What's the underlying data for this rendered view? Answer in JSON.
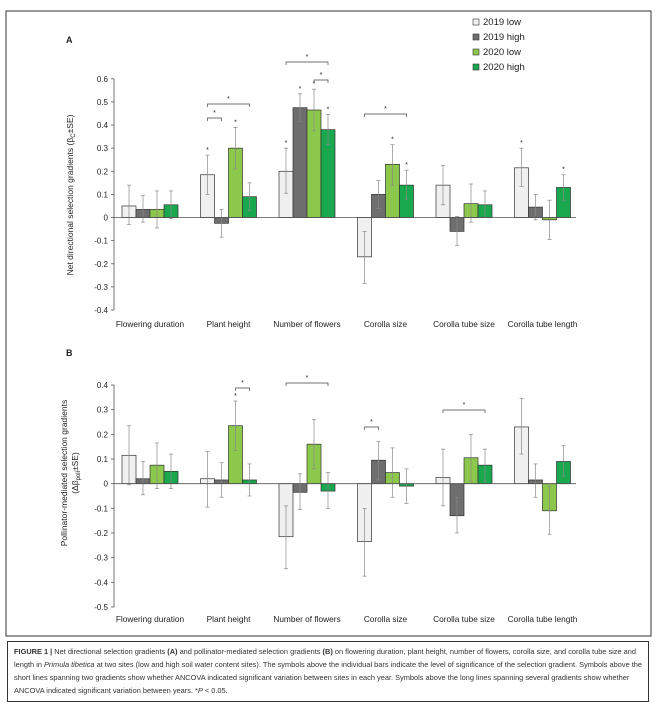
{
  "chart_data": [
    {
      "panel": "A",
      "type": "bar",
      "ylabel": {
        "pre": "Net directional selection gradients (β",
        "sub": "C",
        "post": "±SE)"
      },
      "ylim": [
        -0.4,
        0.6
      ],
      "yticks": [
        "0.6",
        "0.5",
        "0.4",
        "0.3",
        "0.2",
        "0.1",
        "0",
        "-0.1",
        "-0.2",
        "-0.3",
        "-0.4"
      ],
      "categories": [
        "Flowering duration",
        "Plant height",
        "Number of flowers",
        "Corolla size",
        "Corolla tube size",
        "Corolla tube length"
      ],
      "series": [
        {
          "name": "2019 low",
          "color": "#f0f0f0",
          "values": [
            0.05,
            0.185,
            0.2,
            -0.17,
            0.14,
            0.215
          ],
          "err": [
            [
              -0.03,
              0.14
            ],
            [
              0.1,
              0.27
            ],
            [
              0.105,
              0.3
            ],
            [
              -0.285,
              -0.06
            ],
            [
              0.055,
              0.225
            ],
            [
              0.135,
              0.3
            ]
          ],
          "sig": [
            false,
            true,
            true,
            false,
            false,
            true
          ]
        },
        {
          "name": "2019 high",
          "color": "#6e6e6e",
          "values": [
            0.035,
            -0.025,
            0.475,
            0.1,
            -0.06,
            0.045
          ],
          "err": [
            [
              -0.02,
              0.095
            ],
            [
              -0.085,
              0.035
            ],
            [
              0.415,
              0.535
            ],
            [
              0.04,
              0.16
            ],
            [
              -0.12,
              0.005
            ],
            [
              -0.01,
              0.1
            ]
          ],
          "sig": [
            false,
            false,
            true,
            false,
            false,
            false
          ]
        },
        {
          "name": "2020 low",
          "color": "#8cc84b",
          "values": [
            0.035,
            0.3,
            0.465,
            0.23,
            0.06,
            -0.01
          ],
          "err": [
            [
              -0.045,
              0.115
            ],
            [
              0.21,
              0.39
            ],
            [
              0.375,
              0.555
            ],
            [
              0.14,
              0.315
            ],
            [
              -0.02,
              0.145
            ],
            [
              -0.095,
              0.075
            ]
          ],
          "sig": [
            false,
            true,
            true,
            true,
            false,
            false
          ]
        },
        {
          "name": "2020 high",
          "color": "#1aa84f",
          "values": [
            0.055,
            0.09,
            0.38,
            0.14,
            0.055,
            0.13
          ],
          "err": [
            [
              -0.005,
              0.115
            ],
            [
              0.03,
              0.15
            ],
            [
              0.315,
              0.445
            ],
            [
              0.08,
              0.205
            ],
            [
              0,
              0.115
            ],
            [
              0.075,
              0.185
            ]
          ],
          "sig": [
            false,
            false,
            true,
            true,
            false,
            true
          ]
        }
      ],
      "brackets": [
        {
          "category": 1,
          "bars": [
            0,
            1
          ],
          "label": "*"
        },
        {
          "category": 1,
          "bars": [
            0,
            3
          ],
          "label": "*"
        },
        {
          "category": 2,
          "bars": [
            0,
            3
          ],
          "label": "*"
        },
        {
          "category": 2,
          "bars": [
            2,
            3
          ],
          "label": "*"
        },
        {
          "category": 3,
          "bars": [
            0,
            3
          ],
          "label": "*"
        }
      ],
      "legend": "top-right",
      "grid": false
    },
    {
      "panel": "B",
      "type": "bar",
      "ylabel": {
        "line1": "Pollinator-mediated selection gradients",
        "pre": "(Δβ",
        "sub": "poll",
        "post": "±SE)"
      },
      "ylim": [
        -0.5,
        0.4
      ],
      "yticks": [
        "0.4",
        "0.3",
        "0.2",
        "0.1",
        "0",
        "-0.1",
        "-0.2",
        "-0.3",
        "-0.4",
        "-0.5"
      ],
      "categories": [
        "Flowering duration",
        "Plant height",
        "Number of flowers",
        "Corolla size",
        "Corolla tube size",
        "Corolla tube length"
      ],
      "series": [
        {
          "name": "2019 low",
          "color": "#f0f0f0",
          "values": [
            0.115,
            0.02,
            -0.215,
            -0.235,
            0.025,
            0.23
          ],
          "err": [
            [
              -0.005,
              0.235
            ],
            [
              -0.095,
              0.13
            ],
            [
              -0.345,
              -0.09
            ],
            [
              -0.375,
              -0.1
            ],
            [
              -0.09,
              0.14
            ],
            [
              0.12,
              0.345
            ]
          ],
          "sig": [
            false,
            false,
            false,
            false,
            false,
            false
          ]
        },
        {
          "name": "2019 high",
          "color": "#6e6e6e",
          "values": [
            0.02,
            0.015,
            -0.035,
            0.095,
            -0.13,
            0.015
          ],
          "err": [
            [
              -0.045,
              0.09
            ],
            [
              -0.055,
              0.085
            ],
            [
              -0.105,
              0.04
            ],
            [
              0.015,
              0.17
            ],
            [
              -0.2,
              -0.055
            ],
            [
              -0.055,
              0.08
            ]
          ],
          "sig": [
            false,
            false,
            false,
            false,
            false,
            false
          ]
        },
        {
          "name": "2020 low",
          "color": "#8cc84b",
          "values": [
            0.075,
            0.235,
            0.16,
            0.045,
            0.105,
            -0.11
          ],
          "err": [
            [
              -0.02,
              0.165
            ],
            [
              0.135,
              0.335
            ],
            [
              0.06,
              0.26
            ],
            [
              -0.055,
              0.145
            ],
            [
              0.01,
              0.2
            ],
            [
              -0.205,
              -0.01
            ]
          ],
          "sig": [
            false,
            true,
            false,
            false,
            false,
            false
          ]
        },
        {
          "name": "2020 high",
          "color": "#1aa84f",
          "values": [
            0.05,
            0.015,
            -0.03,
            -0.01,
            0.075,
            0.09
          ],
          "err": [
            [
              -0.02,
              0.12
            ],
            [
              -0.05,
              0.08
            ],
            [
              -0.1,
              0.045
            ],
            [
              -0.08,
              0.06
            ],
            [
              0.01,
              0.14
            ],
            [
              0.03,
              0.155
            ]
          ],
          "sig": [
            false,
            false,
            false,
            false,
            false,
            false
          ]
        }
      ],
      "brackets": [
        {
          "category": 1,
          "bars": [
            2,
            3
          ],
          "label": "*"
        },
        {
          "category": 2,
          "bars": [
            0,
            3
          ],
          "label": "*"
        },
        {
          "category": 3,
          "bars": [
            0,
            1
          ],
          "label": "*"
        },
        {
          "category": 4,
          "bars": [
            0,
            3
          ],
          "label": "*"
        }
      ],
      "grid": false
    }
  ],
  "caption": {
    "fig": "FIGURE 1 |",
    "t1": " Net directional selection gradients ",
    "a": "(A)",
    "t2": " and pollinator-mediated selection gradients ",
    "b": "(B)",
    "t3": " on flowering duration, plant height, number of flowers, corolla size, and corolla tube size and length in ",
    "species": "Primula tibetica",
    "t4": " at two sites (low and high soil water content sites). The symbols above the individual bars indicate the level of significance of the selection gradient. Symbols above the short lines spanning two gradients show whether ANCOVA indicated significant variation between sites in each year. Symbols above the long lines spanning several gradients show whether ANCOVA indicated significant variation between years. *",
    "p": "P",
    "t5": " < 0.05."
  }
}
